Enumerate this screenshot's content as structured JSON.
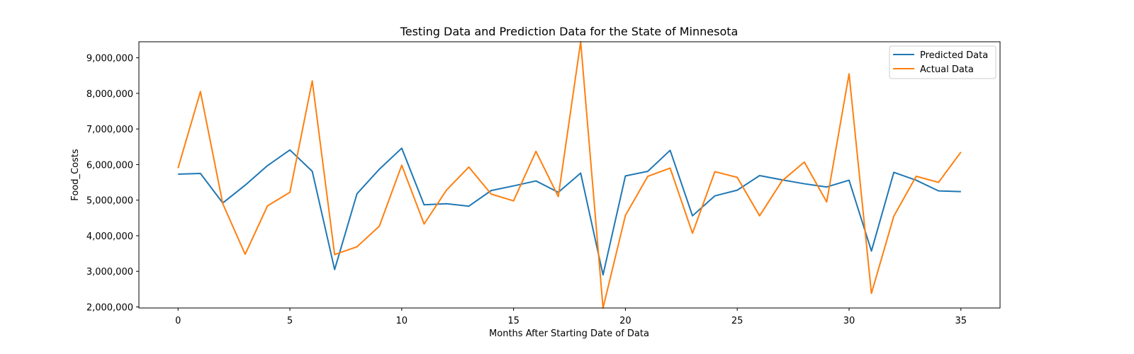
{
  "chart_data": {
    "type": "line",
    "title": "Testing Data and Prediction Data for the State of Minnesota",
    "xlabel": "Months After Starting Date of Data",
    "ylabel": "Food_Costs",
    "x": [
      0,
      1,
      2,
      3,
      4,
      5,
      6,
      7,
      8,
      9,
      10,
      11,
      12,
      13,
      14,
      15,
      16,
      17,
      18,
      19,
      20,
      21,
      22,
      23,
      24,
      25,
      26,
      27,
      28,
      29,
      30,
      31,
      32,
      33,
      34,
      35
    ],
    "xlim": [
      -1.75,
      36.75
    ],
    "ylim": [
      1970000,
      9450000
    ],
    "xticks": [
      0,
      5,
      10,
      15,
      20,
      25,
      30,
      35
    ],
    "xtick_labels": [
      "0",
      "5",
      "10",
      "15",
      "20",
      "25",
      "30",
      "35"
    ],
    "yticks": [
      2000000,
      3000000,
      4000000,
      5000000,
      6000000,
      7000000,
      8000000,
      9000000
    ],
    "ytick_labels": [
      "2,000,000",
      "3,000,000",
      "4,000,000",
      "5,000,000",
      "6,000,000",
      "7,000,000",
      "8,000,000",
      "9,000,000"
    ],
    "grid": false,
    "legend_position": "top-right",
    "series": [
      {
        "name": "Predicted Data",
        "color": "#1f77b4",
        "values": [
          5730000,
          5750000,
          4920000,
          5420000,
          5970000,
          6410000,
          5810000,
          3050000,
          5180000,
          5870000,
          6460000,
          4870000,
          4900000,
          4830000,
          5270000,
          5400000,
          5540000,
          5220000,
          5760000,
          2900000,
          5680000,
          5810000,
          6400000,
          4560000,
          5120000,
          5280000,
          5690000,
          5570000,
          5460000,
          5370000,
          5560000,
          3570000,
          5780000,
          5560000,
          5260000,
          5240000
        ]
      },
      {
        "name": "Actual Data",
        "color": "#ff7f0e",
        "values": [
          5900000,
          8050000,
          4900000,
          3480000,
          4840000,
          5220000,
          8350000,
          3470000,
          3690000,
          4270000,
          5980000,
          4330000,
          5280000,
          5930000,
          5170000,
          4980000,
          6370000,
          5100000,
          9450000,
          1970000,
          4570000,
          5670000,
          5900000,
          4070000,
          5800000,
          5640000,
          4560000,
          5540000,
          6070000,
          4950000,
          8550000,
          2380000,
          4550000,
          5670000,
          5500000,
          6350000
        ]
      }
    ]
  }
}
